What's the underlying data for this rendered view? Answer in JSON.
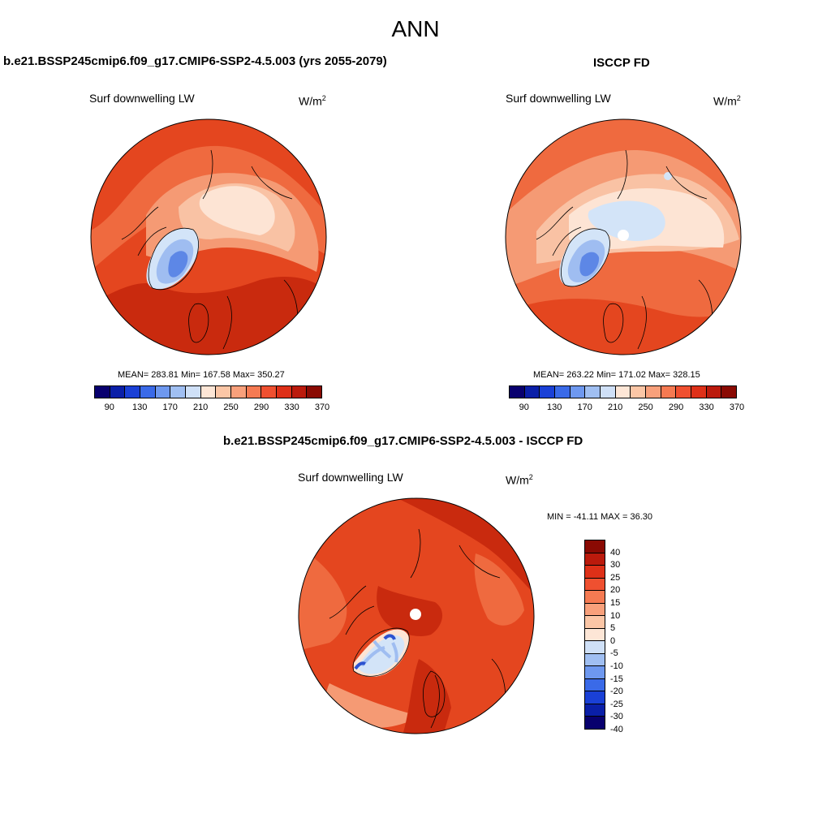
{
  "main_title": "ANN",
  "panels": [
    {
      "title": "b.e21.BSSP245cmip6.f09_g17.CMIP6-SSP2-4.5.003 (yrs 2055-2079)",
      "var_label": "Surf downwelling LW",
      "units_base": "W/m",
      "units_exp": "2",
      "stats": "MEAN= 283.81  Min= 167.58  Max= 350.27",
      "mean": 283.81,
      "min": 167.58,
      "max": 350.27
    },
    {
      "title": "ISCCP FD",
      "var_label": "Surf downwelling LW",
      "units_base": "W/m",
      "units_exp": "2",
      "stats": "MEAN= 263.22  Min= 171.02  Max= 328.15",
      "mean": 263.22,
      "min": 171.02,
      "max": 328.15
    },
    {
      "title": "b.e21.BSSP245cmip6.f09_g17.CMIP6-SSP2-4.5.003 - ISCCP FD",
      "var_label": "Surf downwelling LW",
      "units_base": "W/m",
      "units_exp": "2",
      "stats": "MIN = -41.11 MAX =  36.30",
      "min": -41.11,
      "max": 36.3
    }
  ],
  "abs_colorbar": {
    "colors": [
      "#08006e",
      "#0a1fa8",
      "#1a40d6",
      "#3a6ae8",
      "#6e98ef",
      "#a0bff2",
      "#cfe0f7",
      "#fde6d6",
      "#fbc6a6",
      "#f8a07b",
      "#f57a52",
      "#ef5030",
      "#de3018",
      "#bb1a0c",
      "#8a0a03"
    ],
    "tick_labels": [
      "90",
      "130",
      "170",
      "210",
      "250",
      "290",
      "330",
      "370"
    ]
  },
  "diff_colorbar": {
    "colors": [
      "#8a0a03",
      "#bb1a0c",
      "#de3018",
      "#ef5030",
      "#f57a52",
      "#f8a07b",
      "#fbc6a6",
      "#fde6d6",
      "#cfe0f7",
      "#a0bff2",
      "#6e98ef",
      "#3a6ae8",
      "#1a40d6",
      "#0a1fa8",
      "#08006e"
    ],
    "tick_labels": [
      "40",
      "30",
      "25",
      "20",
      "15",
      "10",
      "5",
      "0",
      "-5",
      "-10",
      "-15",
      "-20",
      "-25",
      "-30",
      "-40"
    ]
  },
  "map_colors": {
    "deep_red": "#c92a0e",
    "red": "#e4461f",
    "orange_red": "#ef6a3f",
    "salmon": "#f59a74",
    "light_salmon": "#f9c2a4",
    "pale": "#fde4d4",
    "pale_blue": "#d3e4f8",
    "light_blue": "#9fbdf1",
    "blue": "#5d87e6",
    "deep_blue": "#2c52d0",
    "white": "#ffffff"
  }
}
